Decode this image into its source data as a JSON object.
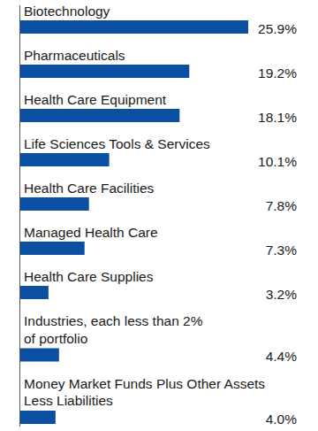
{
  "chart_data": {
    "type": "bar",
    "orientation": "horizontal",
    "categories": [
      "Biotechnology",
      "Pharmaceuticals",
      "Health Care Equipment",
      "Life Sciences Tools & Services",
      "Health Care Facilities",
      "Managed Health Care",
      "Health Care Supplies",
      "Industries, each less than 2%\nof portfolio",
      "Money Market Funds Plus Other Assets\nLess Liabilities"
    ],
    "values": [
      25.9,
      19.2,
      18.1,
      10.1,
      7.8,
      7.3,
      3.2,
      4.4,
      4.0
    ],
    "value_labels": [
      "25.9%",
      "19.2%",
      "18.1%",
      "10.1%",
      "7.8%",
      "7.3%",
      "3.2%",
      "4.4%",
      "4.0%"
    ],
    "color": "#0b4fa3",
    "xlim": [
      0,
      26
    ],
    "data_labels": true,
    "tick_labels": false,
    "grid": false
  }
}
